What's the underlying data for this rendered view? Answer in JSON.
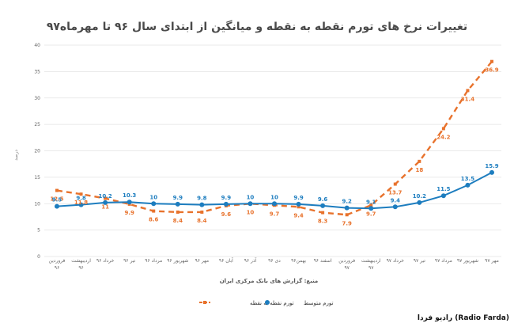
{
  "title": "تغییرات نرخ های تورم نقطه به نقطه و میانگین از ابتدای سال ۹۶ تا مهرماه۹۷",
  "ylabel": "درصد",
  "source": "منبع: گزارش های بانک مرکزی ایران",
  "brand": "رادیو فردا (Radio Farda)",
  "colors": {
    "point": "#E8722C",
    "average": "#1D7DBF",
    "grid": "#e3e3e3"
  },
  "chart_data": {
    "type": "line",
    "categories": [
      "فروردین ۹۶",
      "اردیبهشت ۹۶",
      "خرداد ۹۶",
      "تیر ۹۶",
      "مرداد ۹۶",
      "شهریور ۹۶",
      "مهر ۹۶",
      "آبان ۹۶",
      "آذر ۹۶",
      "دی ۹۶",
      "بهمن۹۶",
      "اسفند ۹۶",
      "فروردین ۹۷",
      "اردیبهشت ۹۷",
      "خرداد ۹۷",
      "تیر ۹۷",
      "مرداد ۹۷",
      "شهریور ۹۷",
      "مهر ۹۷"
    ],
    "ylim": [
      0,
      40
    ],
    "yticks": [
      0,
      5,
      10,
      15,
      20,
      25,
      30,
      35,
      40
    ],
    "grid": true,
    "legend_position": "bottom",
    "series": [
      {
        "name": "تورم نقطه به نقطه",
        "key": "point",
        "style": "dashed",
        "values": [
          12.5,
          11.8,
          11,
          9.9,
          8.6,
          8.4,
          8.4,
          9.6,
          10,
          9.7,
          9.4,
          8.3,
          7.9,
          9.7,
          13.7,
          18,
          24.2,
          31.4,
          36.9
        ]
      },
      {
        "name": "تورم متوسط",
        "key": "average",
        "style": "solid",
        "values": [
          9.5,
          9.8,
          10.2,
          10.3,
          10,
          9.9,
          9.8,
          9.9,
          10,
          10,
          9.9,
          9.6,
          9.2,
          9.1,
          9.4,
          10.2,
          11.5,
          13.5,
          15.9
        ]
      }
    ],
    "labels": {
      "point": [
        "12.5",
        "11.8",
        "11",
        "9.9",
        "8.6",
        "8.4",
        "8.4",
        "9.6",
        "10",
        "9.7",
        "9.4",
        "8.3",
        "7.9",
        "9.7",
        "13.7",
        "18",
        "24.2",
        "31.4",
        "36.9"
      ],
      "average": [
        "9.5",
        "9.8",
        "10.2",
        "10.3",
        "10",
        "9.9",
        "9.8",
        "9.9",
        "10",
        "10",
        "9.9",
        "9.6",
        "9.2",
        "9.1",
        "9.4",
        "10.2",
        "11.5",
        "13.5",
        "15.9"
      ]
    }
  }
}
